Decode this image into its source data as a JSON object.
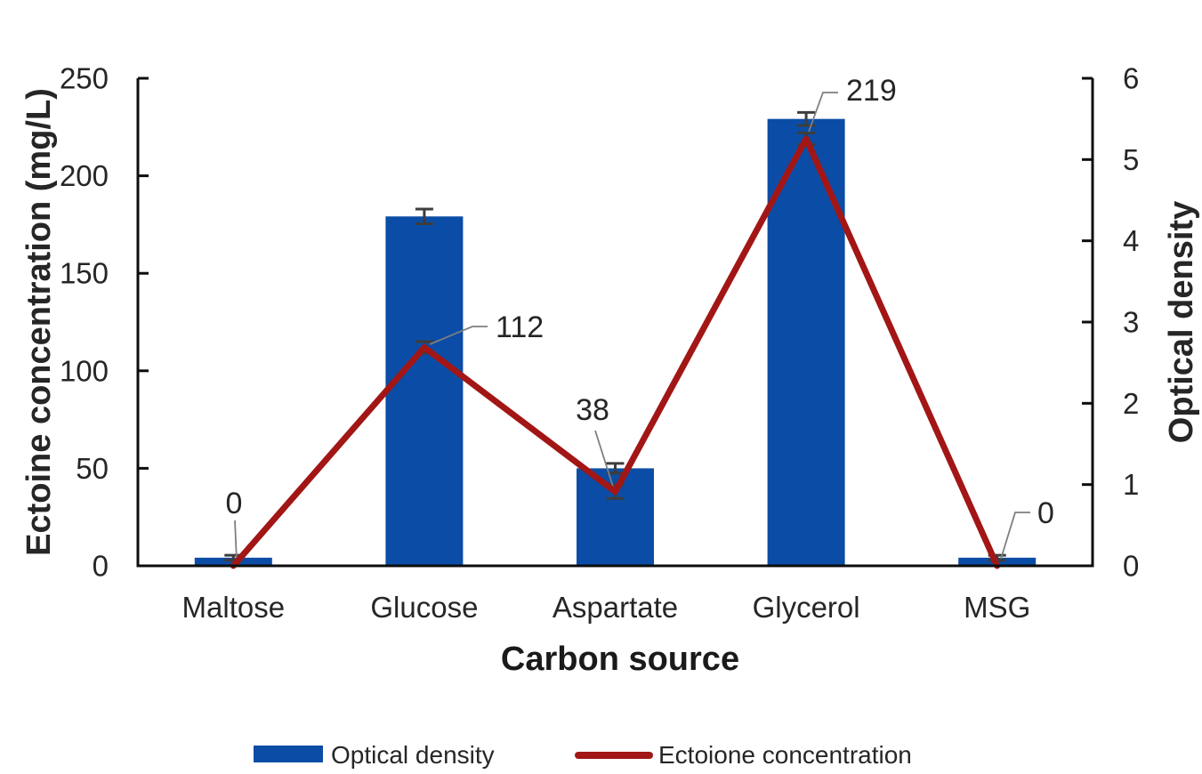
{
  "chart_data": {
    "type": "combo",
    "subtype": "bar+line, dual axis",
    "categories": [
      "Maltose",
      "Glucose",
      "Aspartate",
      "Glycerol",
      "MSG"
    ],
    "x_axis": {
      "title": "Carbon source"
    },
    "left_axis": {
      "title": "Ectoine concentration (mg/L)",
      "min": 0,
      "max": 250,
      "ticks": [
        0,
        50,
        100,
        150,
        200,
        250
      ]
    },
    "right_axis": {
      "title": "Optical density",
      "min": 0,
      "max": 6,
      "ticks": [
        0,
        1,
        2,
        3,
        4,
        5,
        6
      ]
    },
    "series": [
      {
        "name": "Optical density",
        "type": "bar",
        "axis": "right",
        "color": "#0B4DA6",
        "values": [
          0.1,
          4.3,
          1.2,
          5.5,
          0.1
        ],
        "errors": [
          0.03,
          0.09,
          0.06,
          0.08,
          0.03
        ]
      },
      {
        "name": "Ectoione concentration",
        "type": "line",
        "axis": "left",
        "color": "#A21616",
        "values": [
          0,
          112,
          38,
          219,
          0
        ],
        "errors": [
          0,
          3,
          3.5,
          3,
          0
        ],
        "data_labels": [
          "0",
          "112",
          "38",
          "219",
          "0"
        ]
      }
    ],
    "legend": {
      "position": "bottom",
      "entries": [
        "Optical density",
        "Ectoione concentration"
      ]
    },
    "grid": false
  },
  "colors": {
    "bar": "#0B4DA6",
    "line": "#A21616",
    "text": "#262626",
    "axis": "#0D0D0D",
    "leader": "#7F7F7F",
    "error_bar": "#3D3D3D",
    "background": "#FFFFFF"
  }
}
